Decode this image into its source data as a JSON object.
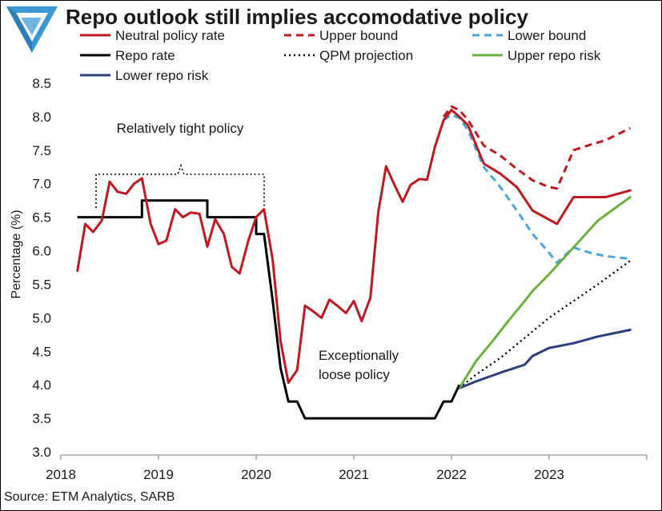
{
  "header": {
    "title": "Repo outlook still implies accomodative policy"
  },
  "footer": {
    "source": "Source: ETM Analytics, SARB"
  },
  "colors": {
    "red": "#c0191f",
    "black": "#000000",
    "light_blue": "#4aa6d9",
    "green": "#6ab23f",
    "navy": "#2b3f7d",
    "logo_blue": "#3a98d3"
  },
  "chart_data": {
    "type": "line",
    "title": "Repo outlook still implies accomodative policy",
    "xlabel": "",
    "ylabel": "Percentage (%)",
    "xlim": [
      2018.0,
      2024.0
    ],
    "ylim": [
      3.0,
      8.5
    ],
    "y_ticks": [
      "3.0",
      "3.5",
      "4.0",
      "4.5",
      "5.0",
      "5.5",
      "6.0",
      "6.5",
      "7.0",
      "7.5",
      "8.0",
      "8.5"
    ],
    "x_ticks": [
      "2018",
      "2019",
      "2020",
      "2021",
      "2022",
      "2023"
    ],
    "grid": false,
    "legend_position": "top",
    "legend": [
      {
        "label": "Neutral policy rate",
        "series": "neutral"
      },
      {
        "label": "Upper bound",
        "series": "upper_bound"
      },
      {
        "label": "Lower bound",
        "series": "lower_bound"
      },
      {
        "label": "Repo rate",
        "series": "repo"
      },
      {
        "label": "QPM projection",
        "series": "qpm"
      },
      {
        "label": "Upper repo risk",
        "series": "upper_risk"
      },
      {
        "label": "Lower repo risk",
        "series": "lower_risk"
      }
    ],
    "series": [
      {
        "id": "neutral",
        "name": "Neutral policy rate",
        "color": "#c0191f",
        "style": "solid",
        "points": [
          [
            2018.17,
            5.7
          ],
          [
            2018.25,
            6.4
          ],
          [
            2018.33,
            6.28
          ],
          [
            2018.42,
            6.45
          ],
          [
            2018.5,
            7.03
          ],
          [
            2018.58,
            6.88
          ],
          [
            2018.67,
            6.85
          ],
          [
            2018.75,
            7.0
          ],
          [
            2018.83,
            7.08
          ],
          [
            2018.92,
            6.4
          ],
          [
            2019.0,
            6.1
          ],
          [
            2019.08,
            6.15
          ],
          [
            2019.17,
            6.62
          ],
          [
            2019.25,
            6.5
          ],
          [
            2019.33,
            6.57
          ],
          [
            2019.42,
            6.55
          ],
          [
            2019.5,
            6.06
          ],
          [
            2019.58,
            6.47
          ],
          [
            2019.67,
            6.25
          ],
          [
            2019.75,
            5.76
          ],
          [
            2019.83,
            5.66
          ],
          [
            2019.92,
            6.15
          ],
          [
            2020.0,
            6.5
          ],
          [
            2020.08,
            6.62
          ],
          [
            2020.17,
            5.86
          ],
          [
            2020.25,
            4.65
          ],
          [
            2020.33,
            4.03
          ],
          [
            2020.42,
            4.22
          ],
          [
            2020.5,
            5.18
          ],
          [
            2020.58,
            5.1
          ],
          [
            2020.67,
            5.0
          ],
          [
            2020.75,
            5.27
          ],
          [
            2020.83,
            5.18
          ],
          [
            2020.92,
            5.07
          ],
          [
            2021.0,
            5.25
          ],
          [
            2021.08,
            4.95
          ],
          [
            2021.17,
            5.3
          ],
          [
            2021.25,
            6.57
          ],
          [
            2021.33,
            7.26
          ],
          [
            2021.42,
            6.97
          ],
          [
            2021.5,
            6.73
          ],
          [
            2021.58,
            6.98
          ],
          [
            2021.67,
            7.07
          ],
          [
            2021.75,
            7.06
          ],
          [
            2021.83,
            7.55
          ],
          [
            2021.92,
            7.95
          ],
          [
            2022.0,
            8.1
          ],
          [
            2022.08,
            8.0
          ],
          [
            2022.17,
            7.87
          ],
          [
            2022.33,
            7.3
          ],
          [
            2022.5,
            7.15
          ],
          [
            2022.67,
            6.95
          ],
          [
            2022.83,
            6.6
          ],
          [
            2023.08,
            6.4
          ],
          [
            2023.25,
            6.8
          ],
          [
            2023.42,
            6.8
          ],
          [
            2023.58,
            6.8
          ],
          [
            2023.83,
            6.9
          ]
        ]
      },
      {
        "id": "upper_bound",
        "name": "Upper bound",
        "color": "#c0191f",
        "style": "dashed",
        "points": [
          [
            2021.92,
            8.0
          ],
          [
            2022.0,
            8.15
          ],
          [
            2022.08,
            8.1
          ],
          [
            2022.17,
            7.95
          ],
          [
            2022.33,
            7.57
          ],
          [
            2022.5,
            7.42
          ],
          [
            2022.67,
            7.22
          ],
          [
            2022.83,
            7.05
          ],
          [
            2023.0,
            6.95
          ],
          [
            2023.08,
            6.93
          ],
          [
            2023.25,
            7.5
          ],
          [
            2023.42,
            7.58
          ],
          [
            2023.58,
            7.65
          ],
          [
            2023.83,
            7.83
          ]
        ]
      },
      {
        "id": "lower_bound",
        "name": "Lower bound",
        "color": "#4aa6d9",
        "style": "dashed",
        "points": [
          [
            2021.92,
            7.95
          ],
          [
            2022.0,
            8.03
          ],
          [
            2022.08,
            7.98
          ],
          [
            2022.17,
            7.8
          ],
          [
            2022.33,
            7.25
          ],
          [
            2022.5,
            6.95
          ],
          [
            2022.67,
            6.6
          ],
          [
            2022.83,
            6.25
          ],
          [
            2023.0,
            5.97
          ],
          [
            2023.08,
            5.82
          ],
          [
            2023.25,
            6.05
          ],
          [
            2023.42,
            5.97
          ],
          [
            2023.58,
            5.92
          ],
          [
            2023.83,
            5.88
          ]
        ]
      },
      {
        "id": "repo",
        "name": "Repo rate",
        "color": "#000000",
        "style": "step",
        "points": [
          [
            2018.17,
            6.5
          ],
          [
            2018.83,
            6.5
          ],
          [
            2018.83,
            6.75
          ],
          [
            2019.5,
            6.75
          ],
          [
            2019.5,
            6.5
          ],
          [
            2020.0,
            6.5
          ],
          [
            2020.0,
            6.25
          ],
          [
            2020.08,
            6.25
          ],
          [
            2020.17,
            5.25
          ],
          [
            2020.25,
            4.25
          ],
          [
            2020.33,
            3.75
          ],
          [
            2020.42,
            3.75
          ],
          [
            2020.5,
            3.5
          ],
          [
            2021.83,
            3.5
          ],
          [
            2021.92,
            3.75
          ],
          [
            2022.0,
            3.75
          ],
          [
            2022.08,
            4.0
          ]
        ]
      },
      {
        "id": "qpm",
        "name": "QPM projection",
        "color": "#000000",
        "style": "dotted",
        "points": [
          [
            2022.08,
            3.95
          ],
          [
            2022.25,
            4.15
          ],
          [
            2022.5,
            4.4
          ],
          [
            2022.75,
            4.7
          ],
          [
            2023.0,
            5.0
          ],
          [
            2023.25,
            5.25
          ],
          [
            2023.5,
            5.5
          ],
          [
            2023.83,
            5.85
          ]
        ]
      },
      {
        "id": "upper_risk",
        "name": "Upper repo risk",
        "color": "#6ab23f",
        "style": "solid",
        "points": [
          [
            2022.08,
            3.95
          ],
          [
            2022.25,
            4.35
          ],
          [
            2022.42,
            4.65
          ],
          [
            2022.58,
            4.95
          ],
          [
            2022.75,
            5.25
          ],
          [
            2022.83,
            5.4
          ],
          [
            2023.0,
            5.65
          ],
          [
            2023.25,
            6.05
          ],
          [
            2023.5,
            6.45
          ],
          [
            2023.83,
            6.8
          ]
        ]
      },
      {
        "id": "lower_risk",
        "name": "Lower repo risk",
        "color": "#2b3f7d",
        "style": "solid",
        "points": [
          [
            2022.08,
            3.95
          ],
          [
            2022.25,
            4.05
          ],
          [
            2022.5,
            4.18
          ],
          [
            2022.75,
            4.3
          ],
          [
            2022.83,
            4.43
          ],
          [
            2023.0,
            4.55
          ],
          [
            2023.25,
            4.62
          ],
          [
            2023.5,
            4.72
          ],
          [
            2023.83,
            4.82
          ]
        ]
      }
    ],
    "annotations": [
      {
        "id": "tight",
        "lines": [
          "Relatively tight policy"
        ]
      },
      {
        "id": "loose",
        "lines": [
          "Exceptionally",
          "loose policy"
        ]
      }
    ]
  }
}
